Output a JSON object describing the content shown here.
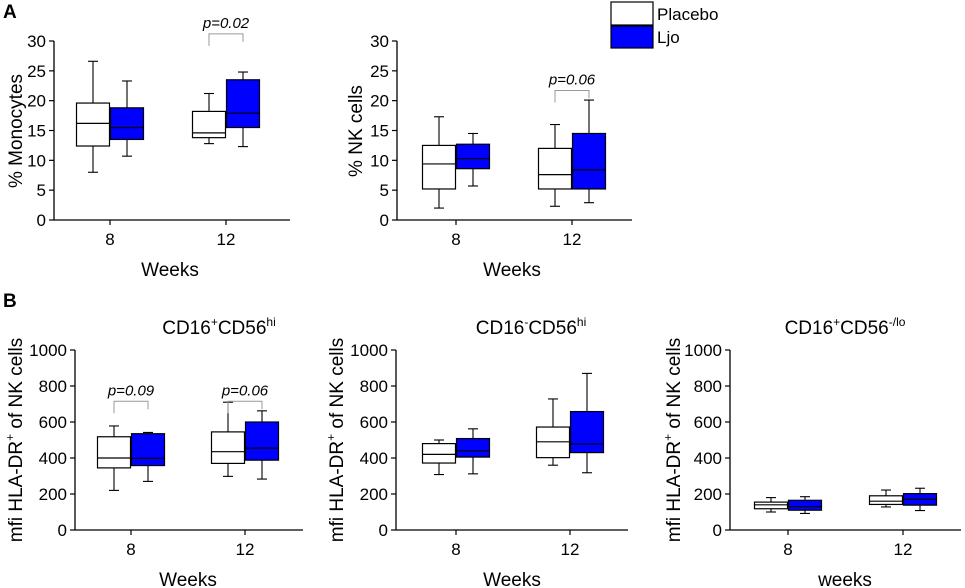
{
  "panel_labels": [
    "A",
    "B"
  ],
  "legend": [
    {
      "label": "Placebo",
      "color": "#ffffff"
    },
    {
      "label": "Ljo",
      "color": "#0000ff"
    }
  ],
  "colors": {
    "placebo": "#ffffff",
    "ljo": "#0000ff",
    "stroke": "#000000",
    "bracket": "#999999"
  },
  "chart_data": [
    {
      "type": "box",
      "id": "a1",
      "title": "",
      "ylabel": "% Monocytes",
      "xlabel": "Weeks",
      "ylim": [
        0,
        30
      ],
      "yticks": [
        0,
        5,
        10,
        15,
        20,
        25,
        30
      ],
      "categories": [
        "8",
        "12"
      ],
      "series": [
        {
          "name": "Placebo",
          "boxes": [
            {
              "min": 8,
              "q1": 12.4,
              "median": 16.2,
              "q3": 19.6,
              "max": 26.6
            },
            {
              "min": 12.8,
              "q1": 13.8,
              "median": 14.6,
              "q3": 18.2,
              "max": 21.2
            }
          ]
        },
        {
          "name": "Ljo",
          "boxes": [
            {
              "min": 10.7,
              "q1": 13.5,
              "median": 15.5,
              "q3": 18.8,
              "max": 23.3
            },
            {
              "min": 12.3,
              "q1": 15.5,
              "median": 17.9,
              "q3": 23.5,
              "max": 24.8
            }
          ]
        }
      ],
      "annotations": [
        {
          "text": "p=0.02",
          "category": 1,
          "y": 31.2
        }
      ]
    },
    {
      "type": "box",
      "id": "a2",
      "title": "",
      "ylabel": "% NK cells",
      "xlabel": "Weeks",
      "ylim": [
        0,
        30
      ],
      "yticks": [
        0,
        5,
        10,
        15,
        20,
        25,
        30
      ],
      "categories": [
        "8",
        "12"
      ],
      "series": [
        {
          "name": "Placebo",
          "boxes": [
            {
              "min": 2,
              "q1": 5.2,
              "median": 9.4,
              "q3": 12.5,
              "max": 17.3
            },
            {
              "min": 2.3,
              "q1": 5.2,
              "median": 7.6,
              "q3": 12,
              "max": 16
            }
          ]
        },
        {
          "name": "Ljo",
          "boxes": [
            {
              "min": 5.7,
              "q1": 8.6,
              "median": 10.3,
              "q3": 12.7,
              "max": 14.5
            },
            {
              "min": 2.9,
              "q1": 5.2,
              "median": 8.4,
              "q3": 14.5,
              "max": 20.1
            }
          ]
        }
      ],
      "annotations": [
        {
          "text": "p=0.06",
          "category": 1,
          "y": 21.7
        }
      ]
    },
    {
      "type": "box",
      "id": "b1",
      "title": {
        "base1": "CD16",
        "sup1": "+",
        "base2": "CD56",
        "sup2": "hi"
      },
      "ylabel": {
        "pre": "mfi HLA-DR",
        "sup": "+",
        "post": " of NK cells"
      },
      "xlabel": "Weeks",
      "ylim": [
        0,
        1000
      ],
      "yticks": [
        0,
        200,
        400,
        600,
        800,
        1000
      ],
      "categories": [
        "8",
        "12"
      ],
      "series": [
        {
          "name": "Placebo",
          "boxes": [
            {
              "min": 220,
              "q1": 345,
              "median": 400,
              "q3": 518,
              "max": 578
            },
            {
              "min": 298,
              "q1": 370,
              "median": 435,
              "q3": 545,
              "max": 710
            }
          ]
        },
        {
          "name": "Ljo",
          "boxes": [
            {
              "min": 270,
              "q1": 358,
              "median": 398,
              "q3": 535,
              "max": 542
            },
            {
              "min": 283,
              "q1": 388,
              "median": 455,
              "q3": 600,
              "max": 662
            }
          ]
        }
      ],
      "annotations": [
        {
          "text": "p=0.09",
          "category": 0,
          "y": 715
        },
        {
          "text": "p=0.06",
          "category": 1,
          "y": 715
        }
      ]
    },
    {
      "type": "box",
      "id": "b2",
      "title": {
        "base1": "CD16",
        "sup1": "-",
        "base2": "CD56",
        "sup2": "hi"
      },
      "ylabel": {
        "pre": "mfi HLA-DR",
        "sup": "+",
        "post": " of NK cells"
      },
      "xlabel": "Weeks",
      "ylim": [
        0,
        1000
      ],
      "yticks": [
        0,
        200,
        400,
        600,
        800,
        1000
      ],
      "categories": [
        "8",
        "12"
      ],
      "series": [
        {
          "name": "Placebo",
          "boxes": [
            {
              "min": 308,
              "q1": 372,
              "median": 420,
              "q3": 480,
              "max": 500
            },
            {
              "min": 360,
              "q1": 402,
              "median": 490,
              "q3": 572,
              "max": 728
            }
          ]
        },
        {
          "name": "Ljo",
          "boxes": [
            {
              "min": 312,
              "q1": 405,
              "median": 440,
              "q3": 508,
              "max": 562
            },
            {
              "min": 318,
              "q1": 430,
              "median": 478,
              "q3": 658,
              "max": 870
            }
          ]
        }
      ],
      "annotations": []
    },
    {
      "type": "box",
      "id": "b3",
      "title": {
        "base1": "CD16",
        "sup1": "+",
        "base2": "CD56",
        "sup2": "-/lo"
      },
      "ylabel": {
        "pre": "mfi HLA-DR",
        "sup": "+",
        "post": " of NK cells"
      },
      "xlabel": "weeks",
      "ylim": [
        0,
        1000
      ],
      "yticks": [
        0,
        200,
        400,
        600,
        800,
        1000
      ],
      "categories": [
        "8",
        "12"
      ],
      "series": [
        {
          "name": "Placebo",
          "boxes": [
            {
              "min": 100,
              "q1": 118,
              "median": 140,
              "q3": 155,
              "max": 180
            },
            {
              "min": 128,
              "q1": 142,
              "median": 160,
              "q3": 190,
              "max": 222
            }
          ]
        },
        {
          "name": "Ljo",
          "boxes": [
            {
              "min": 92,
              "q1": 110,
              "median": 130,
              "q3": 165,
              "max": 185
            },
            {
              "min": 108,
              "q1": 138,
              "median": 170,
              "q3": 202,
              "max": 232
            }
          ]
        }
      ],
      "annotations": []
    }
  ]
}
